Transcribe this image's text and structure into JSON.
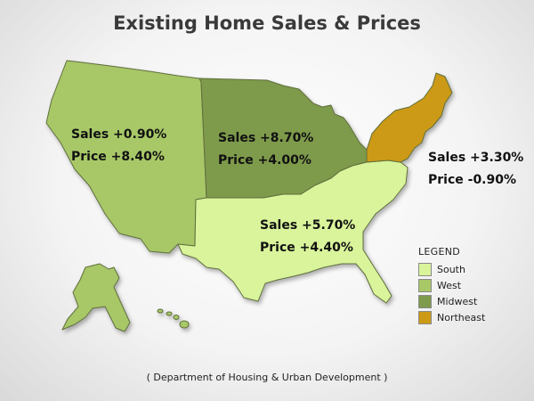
{
  "title": "Existing Home Sales & Prices",
  "regions": {
    "west": {
      "sales": "Sales +0.90%",
      "price": "Price +8.40%",
      "color": "#a8c868"
    },
    "midwest": {
      "sales": "Sales +8.70%",
      "price": "Price +4.00%",
      "color": "#7e9a4c"
    },
    "south": {
      "sales": "Sales +5.70%",
      "price": "Price +4.40%",
      "color": "#d9f49b"
    },
    "northeast": {
      "sales": "Sales +3.30%",
      "price": "Price -0.90%",
      "color": "#cc9a14"
    }
  },
  "legend": {
    "title": "LEGEND",
    "items": [
      {
        "label": "South",
        "color": "#d9f49b"
      },
      {
        "label": "West",
        "color": "#a8c868"
      },
      {
        "label": "Midwest",
        "color": "#7e9a4c"
      },
      {
        "label": "Northeast",
        "color": "#cc9a14"
      }
    ]
  },
  "source": "( Department of Housing & Urban Development )"
}
